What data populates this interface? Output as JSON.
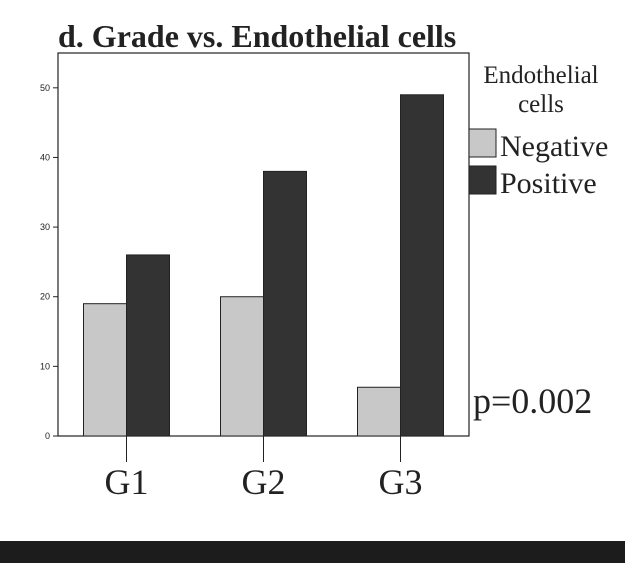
{
  "chart_data": {
    "type": "bar",
    "title": "d. Grade vs. Endothelial cells",
    "xlabel": "",
    "ylabel": "",
    "categories": [
      "G1",
      "G2",
      "G3"
    ],
    "series": [
      {
        "name": "Negative",
        "values": [
          19,
          20,
          7
        ],
        "color": "#c8c8c8"
      },
      {
        "name": "Positive",
        "values": [
          26,
          38,
          49
        ],
        "color": "#333333"
      }
    ],
    "ylim": [
      0,
      55
    ],
    "yticks": [
      0,
      10,
      20,
      30,
      40,
      50
    ],
    "grid": false,
    "legend": {
      "title_line1": "Endothelial",
      "title_line2": "cells",
      "placement": "right"
    },
    "annotation": "p=0.002"
  }
}
